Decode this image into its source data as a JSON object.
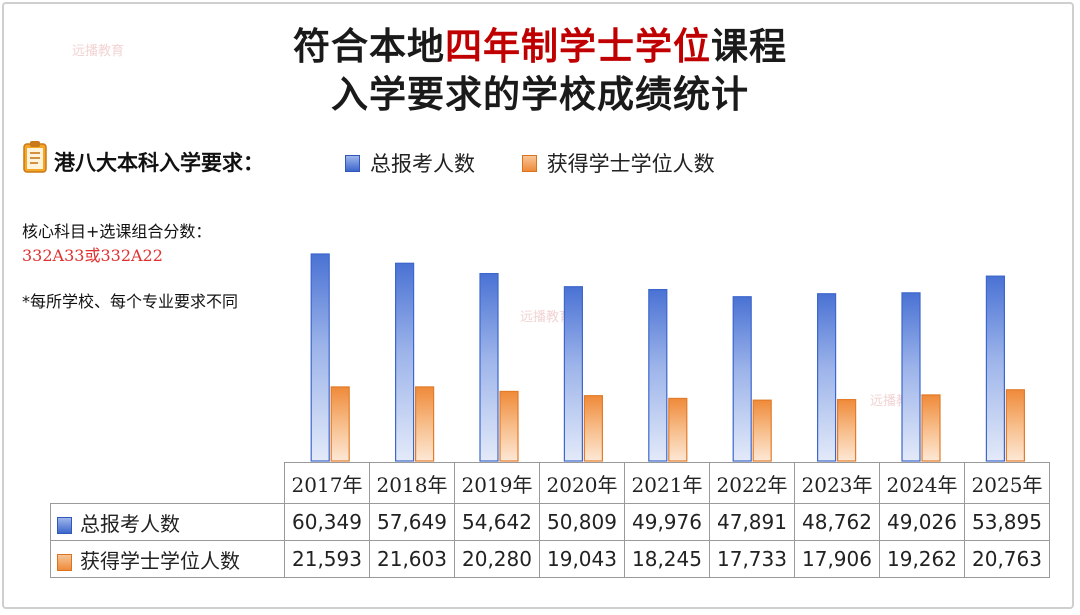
{
  "title": {
    "line1_part1": "符合本地",
    "line1_highlight": "四年制学士学位",
    "line1_part2": "课程",
    "line2": "入学要求的学校成绩统计"
  },
  "requirements": {
    "icon": "clipboard-icon",
    "heading": "港八大本科入学要求：",
    "core_label": "核心科目+选课组合分数：",
    "score_value": "332A33或332A22",
    "note": "*每所学校、每个专业要求不同"
  },
  "watermark": "远播教育",
  "colors": {
    "total": "#4a72d4",
    "degree": "#ef8a3a",
    "accent": "#c00000"
  },
  "chart_data": {
    "type": "bar",
    "categories": [
      "2017年",
      "2018年",
      "2019年",
      "2020年",
      "2021年",
      "2022年",
      "2023年",
      "2024年",
      "2025年"
    ],
    "series": [
      {
        "name": "总报考人数",
        "values": [
          60349,
          57649,
          54642,
          50809,
          49976,
          47891,
          48762,
          49026,
          53895
        ]
      },
      {
        "name": "获得学士学位人数",
        "values": [
          21593,
          21603,
          20280,
          19043,
          18245,
          17733,
          17906,
          19262,
          20763
        ]
      }
    ],
    "value_labels": {
      "total": [
        "60,349",
        "57,649",
        "54,642",
        "50,809",
        "49,976",
        "47,891",
        "48,762",
        "49,026",
        "53,895"
      ],
      "degree": [
        "21,593",
        "21,603",
        "20,280",
        "19,043",
        "18,245",
        "17,733",
        "17,906",
        "19,262",
        "20,763"
      ]
    },
    "ylim": [
      0,
      60349
    ],
    "grid": false,
    "legend": "top"
  }
}
